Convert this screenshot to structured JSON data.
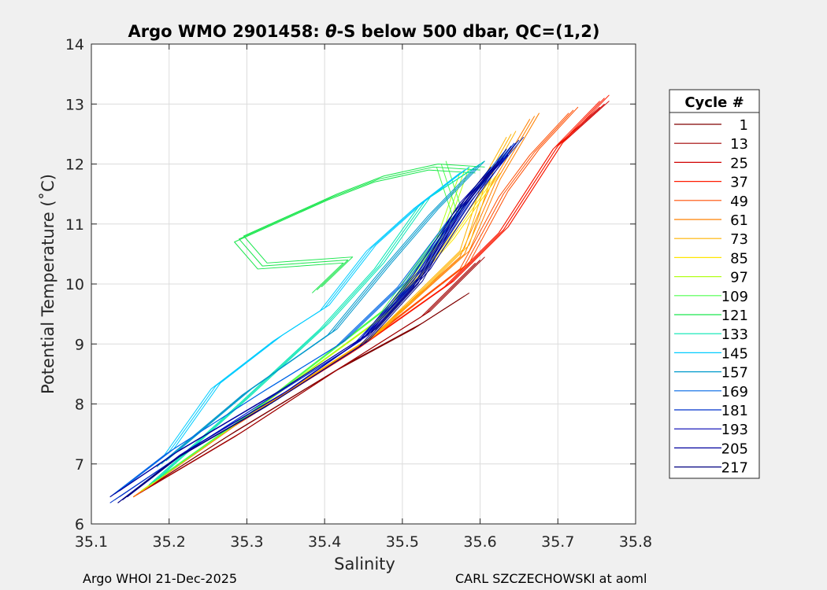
{
  "chart_data": {
    "type": "line",
    "title_prefix": "Argo WMO 2901458: ",
    "title_theta": "θ",
    "title_suffix": "-S below 500 dbar,  QC=(1,2)",
    "xlabel": "Salinity",
    "ylabel": "Potential Temperature (˚C)",
    "xlim": [
      35.1,
      35.8
    ],
    "ylim": [
      6,
      14
    ],
    "x_ticks": [
      35.1,
      35.2,
      35.3,
      35.4,
      35.5,
      35.6,
      35.7,
      35.8
    ],
    "x_tick_labels": [
      "35.1",
      "35.2",
      "35.3",
      "35.4",
      "35.5",
      "35.6",
      "35.7",
      "35.8"
    ],
    "y_ticks": [
      6,
      7,
      8,
      9,
      10,
      11,
      12,
      13,
      14
    ],
    "y_tick_labels": [
      "6",
      "7",
      "8",
      "9",
      "10",
      "11",
      "12",
      "13",
      "14"
    ],
    "grid": true,
    "legend_title": "Cycle #",
    "legend_position": "right",
    "series": [
      {
        "name": "1",
        "color": "#800000",
        "points": [
          [
            35.16,
            6.5
          ],
          [
            35.28,
            7.5
          ],
          [
            35.42,
            8.6
          ],
          [
            35.52,
            9.3
          ],
          [
            35.58,
            9.8
          ]
        ]
      },
      {
        "name": "13",
        "color": "#a00000",
        "points": [
          [
            35.16,
            6.5
          ],
          [
            35.29,
            7.5
          ],
          [
            35.42,
            8.6
          ],
          [
            35.53,
            9.5
          ],
          [
            35.6,
            10.4
          ]
        ]
      },
      {
        "name": "25",
        "color": "#d00000",
        "points": [
          [
            35.16,
            6.5
          ],
          [
            35.28,
            7.6
          ],
          [
            35.44,
            8.9
          ],
          [
            35.56,
            10.0
          ],
          [
            35.63,
            10.9
          ],
          [
            35.7,
            12.3
          ],
          [
            35.76,
            13.0
          ]
        ]
      },
      {
        "name": "37",
        "color": "#ff1a00",
        "points": [
          [
            35.16,
            6.5
          ],
          [
            35.28,
            7.6
          ],
          [
            35.44,
            8.9
          ],
          [
            35.56,
            10.0
          ],
          [
            35.63,
            10.9
          ],
          [
            35.7,
            12.3
          ],
          [
            35.76,
            13.1
          ]
        ]
      },
      {
        "name": "49",
        "color": "#ff4d00",
        "points": [
          [
            35.16,
            6.5
          ],
          [
            35.28,
            7.6
          ],
          [
            35.45,
            9.0
          ],
          [
            35.58,
            10.3
          ],
          [
            35.63,
            11.5
          ],
          [
            35.67,
            12.2
          ],
          [
            35.72,
            12.9
          ]
        ]
      },
      {
        "name": "61",
        "color": "#ff8000",
        "points": [
          [
            35.16,
            6.5
          ],
          [
            35.28,
            7.6
          ],
          [
            35.46,
            9.1
          ],
          [
            35.58,
            10.5
          ],
          [
            35.62,
            11.7
          ],
          [
            35.67,
            12.8
          ]
        ]
      },
      {
        "name": "73",
        "color": "#ffb300",
        "points": [
          [
            35.17,
            6.6
          ],
          [
            35.29,
            7.7
          ],
          [
            35.47,
            9.2
          ],
          [
            35.58,
            10.6
          ],
          [
            35.61,
            11.8
          ],
          [
            35.64,
            12.5
          ]
        ]
      },
      {
        "name": "85",
        "color": "#ffe600",
        "points": [
          [
            35.17,
            6.6
          ],
          [
            35.3,
            7.8
          ],
          [
            35.47,
            9.4
          ],
          [
            35.56,
            10.7
          ],
          [
            35.62,
            11.8
          ]
        ]
      },
      {
        "name": "97",
        "color": "#b3ff1a",
        "points": [
          [
            35.17,
            6.6
          ],
          [
            35.3,
            7.8
          ],
          [
            35.48,
            9.5
          ],
          [
            35.55,
            10.8
          ],
          [
            35.58,
            11.9
          ]
        ]
      },
      {
        "name": "109",
        "color": "#4dff4d",
        "points": [
          [
            35.18,
            6.7
          ],
          [
            35.31,
            7.9
          ],
          [
            35.48,
            9.6
          ],
          [
            35.57,
            11.2
          ],
          [
            35.55,
            12.0
          ]
        ]
      },
      {
        "name": "121",
        "color": "#1ae64d",
        "points": [
          [
            35.39,
            9.9
          ],
          [
            35.43,
            10.4
          ],
          [
            35.32,
            10.3
          ],
          [
            35.29,
            10.75
          ],
          [
            35.41,
            11.45
          ],
          [
            35.47,
            11.75
          ],
          [
            35.54,
            11.95
          ],
          [
            35.6,
            11.9
          ]
        ]
      },
      {
        "name": "133",
        "color": "#00e6b3",
        "points": [
          [
            35.18,
            6.7
          ],
          [
            35.3,
            8.1
          ],
          [
            35.4,
            9.3
          ],
          [
            35.47,
            10.3
          ],
          [
            35.53,
            11.4
          ],
          [
            35.6,
            12.0
          ]
        ]
      },
      {
        "name": "145",
        "color": "#00ccff",
        "points": [
          [
            35.2,
            7.2
          ],
          [
            35.26,
            8.3
          ],
          [
            35.34,
            9.1
          ],
          [
            35.4,
            9.6
          ],
          [
            35.46,
            10.6
          ],
          [
            35.52,
            11.3
          ],
          [
            35.58,
            11.9
          ]
        ]
      },
      {
        "name": "157",
        "color": "#0099cc",
        "points": [
          [
            35.19,
            7.0
          ],
          [
            35.3,
            8.2
          ],
          [
            35.41,
            9.2
          ],
          [
            35.48,
            10.3
          ],
          [
            35.54,
            11.2
          ],
          [
            35.6,
            12.0
          ]
        ]
      },
      {
        "name": "169",
        "color": "#0066e6",
        "points": [
          [
            35.13,
            6.5
          ],
          [
            35.2,
            7.2
          ],
          [
            35.32,
            8.2
          ],
          [
            35.42,
            9.0
          ],
          [
            35.5,
            10.0
          ],
          [
            35.57,
            11.2
          ],
          [
            35.64,
            12.3
          ]
        ]
      },
      {
        "name": "181",
        "color": "#0033cc",
        "points": [
          [
            35.13,
            6.4
          ],
          [
            35.21,
            7.1
          ],
          [
            35.33,
            8.1
          ],
          [
            35.44,
            9.0
          ],
          [
            35.52,
            10.1
          ],
          [
            35.58,
            11.3
          ],
          [
            35.65,
            12.4
          ]
        ]
      },
      {
        "name": "193",
        "color": "#0000b3",
        "points": [
          [
            35.14,
            6.4
          ],
          [
            35.22,
            7.2
          ],
          [
            35.35,
            8.2
          ],
          [
            35.45,
            9.1
          ],
          [
            35.52,
            10.2
          ],
          [
            35.58,
            11.4
          ],
          [
            35.63,
            12.1
          ]
        ]
      },
      {
        "name": "205",
        "color": "#00009e",
        "points": [
          [
            35.13,
            6.5
          ],
          [
            35.21,
            7.2
          ],
          [
            35.34,
            8.2
          ],
          [
            35.46,
            9.2
          ],
          [
            35.53,
            10.2
          ],
          [
            35.59,
            11.4
          ],
          [
            35.64,
            12.3
          ]
        ]
      },
      {
        "name": "217",
        "color": "#000080",
        "points": [
          [
            35.14,
            6.4
          ],
          [
            35.21,
            7.1
          ],
          [
            35.33,
            8.0
          ],
          [
            35.45,
            9.0
          ],
          [
            35.52,
            10.0
          ],
          [
            35.57,
            11.2
          ],
          [
            35.62,
            12.0
          ]
        ]
      }
    ]
  },
  "footer": {
    "left": "Argo WHOI 21-Dec-2025",
    "right": "CARL SZCZECHOWSKI at aoml"
  }
}
